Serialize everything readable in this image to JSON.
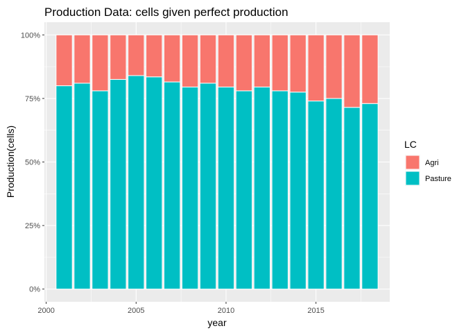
{
  "chart_data": {
    "type": "bar",
    "stacked": "fill",
    "title": "Production Data: cells given perfect production",
    "xlabel": "year",
    "ylabel": "Production(cells)",
    "x": [
      2001,
      2002,
      2003,
      2004,
      2005,
      2006,
      2007,
      2008,
      2009,
      2010,
      2011,
      2012,
      2013,
      2014,
      2015,
      2016,
      2017,
      2018
    ],
    "series": [
      {
        "name": "Pasture",
        "color": "#00BFC4",
        "values": [
          0.8,
          0.81,
          0.78,
          0.825,
          0.84,
          0.835,
          0.815,
          0.795,
          0.81,
          0.795,
          0.78,
          0.795,
          0.78,
          0.775,
          0.74,
          0.75,
          0.715,
          0.73
        ]
      },
      {
        "name": "Agri",
        "color": "#F8766D",
        "values": [
          0.2,
          0.19,
          0.22,
          0.175,
          0.16,
          0.165,
          0.185,
          0.205,
          0.19,
          0.205,
          0.22,
          0.205,
          0.22,
          0.225,
          0.26,
          0.25,
          0.285,
          0.27
        ]
      }
    ],
    "xlim": [
      1999.9,
      2019.1
    ],
    "ylim": [
      -0.05,
      1.05
    ],
    "x_ticks": [
      2000,
      2005,
      2010,
      2015
    ],
    "x_tick_labels": [
      "2000",
      "2005",
      "2010",
      "2015"
    ],
    "y_ticks": [
      0,
      0.25,
      0.5,
      0.75,
      1.0
    ],
    "y_tick_labels": [
      "0%",
      "25%",
      "50%",
      "75%",
      "100%"
    ],
    "legend": {
      "title": "LC",
      "placement": "right",
      "entries": [
        {
          "label": "Agri",
          "color": "#F8766D"
        },
        {
          "label": "Pasture",
          "color": "#00BFC4"
        }
      ]
    },
    "grid": true,
    "panel_background": "#EBEBEB"
  }
}
